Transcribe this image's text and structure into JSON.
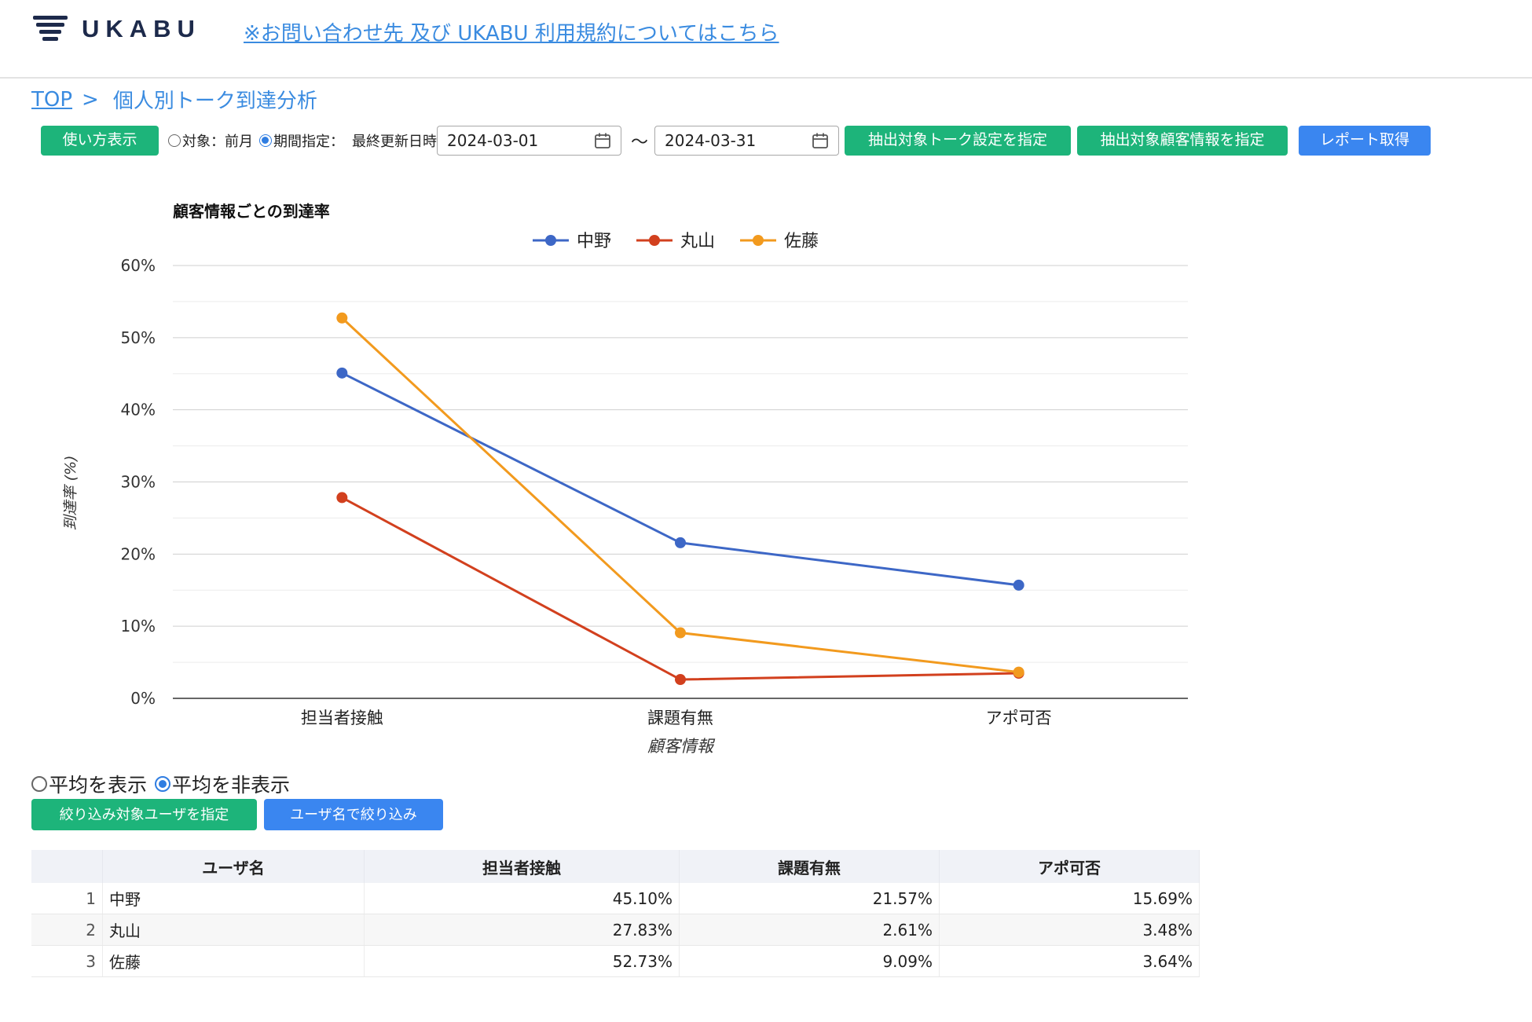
{
  "header": {
    "brand": "UKABU",
    "link": "※お問い合わせ先 及び UKABU 利用規約についてはこちら"
  },
  "breadcrumb": {
    "home": "TOP",
    "separator": ">",
    "current": "個人別トーク到達分析"
  },
  "controls": {
    "howto_label": "使い方表示",
    "radio_prev_month": "対象：前月",
    "radio_period": "期間指定：",
    "last_updated_label": "最終更新日時",
    "date_from": "2024-03-01",
    "tilde": "〜",
    "date_to": "2024-03-31",
    "talk_setting_label": "抽出対象トーク設定を指定",
    "customer_info_label": "抽出対象顧客情報を指定",
    "report_label": "レポート取得",
    "selected_mode": "period"
  },
  "chart_data": {
    "type": "line",
    "title": "顧客情報ごとの到達率",
    "xlabel": "顧客情報",
    "ylabel": "到達率 (%)",
    "categories": [
      "担当者接触",
      "課題有無",
      "アポ可否"
    ],
    "ylim": [
      0,
      60
    ],
    "yticks": [
      "0%",
      "10%",
      "20%",
      "30%",
      "40%",
      "50%",
      "60%"
    ],
    "legend": "top",
    "grid": true,
    "series": [
      {
        "name": "中野",
        "color": "#3d67c6",
        "values": [
          45.1,
          21.57,
          15.69
        ]
      },
      {
        "name": "丸山",
        "color": "#d2401e",
        "values": [
          27.83,
          2.61,
          3.48
        ]
      },
      {
        "name": "佐藤",
        "color": "#f29a1e",
        "values": [
          52.73,
          9.09,
          3.64
        ]
      }
    ]
  },
  "average": {
    "show_label": "平均を表示",
    "hide_label": "平均を非表示",
    "selected": "hide"
  },
  "filters": {
    "target_users_label": "絞り込み対象ユーザを指定",
    "by_name_label": "ユーザ名で絞り込み"
  },
  "table": {
    "headers": [
      "",
      "ユーザ名",
      "担当者接触",
      "課題有無",
      "アポ可否"
    ],
    "rows": [
      [
        "1",
        "中野",
        "45.10%",
        "21.57%",
        "15.69%"
      ],
      [
        "2",
        "丸山",
        "27.83%",
        "2.61%",
        "3.48%"
      ],
      [
        "3",
        "佐藤",
        "52.73%",
        "9.09%",
        "3.64%"
      ]
    ]
  }
}
